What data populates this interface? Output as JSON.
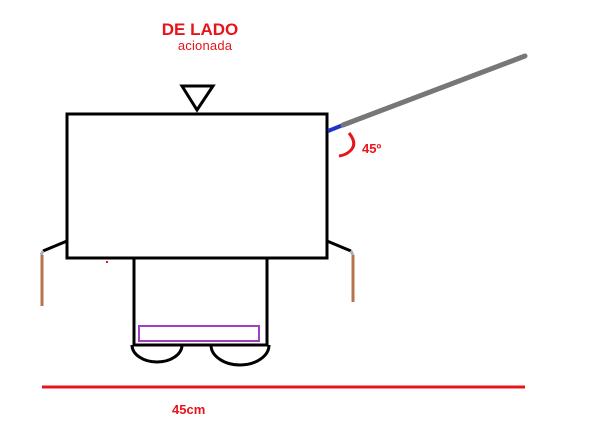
{
  "title": "DE LADO",
  "subtitle": "acionada",
  "angle_label": "45º",
  "dimension_label": "45cm",
  "colors": {
    "text": "#e8141b",
    "outline": "#000000",
    "arm": "#777777",
    "arm_joint": "#2233cc",
    "legs": "#b5754a",
    "leg_tip": "#b0b0b0",
    "tray": "#a040c0",
    "dimension_line": "#e8141b"
  }
}
